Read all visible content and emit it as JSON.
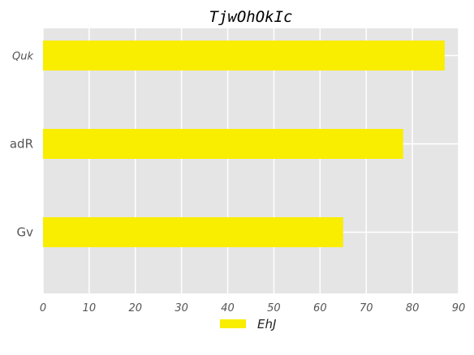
{
  "chart_data": {
    "type": "bar",
    "orientation": "horizontal",
    "title": "TjwOhOkIc",
    "categories": [
      "Quk",
      "adR",
      "Gv"
    ],
    "series": [
      {
        "name": "EhJ",
        "values": [
          87,
          78,
          65
        ]
      }
    ],
    "xlim": [
      0,
      90
    ],
    "xticks": [
      "0",
      "10",
      "20",
      "30",
      "40",
      "50",
      "60",
      "70",
      "80",
      "90"
    ],
    "grid": true,
    "legend_position": "bottom-center",
    "colors": {
      "bar": "#f9ed00",
      "plot_bg": "#e5e5e5",
      "grid": "#ffffff"
    }
  }
}
